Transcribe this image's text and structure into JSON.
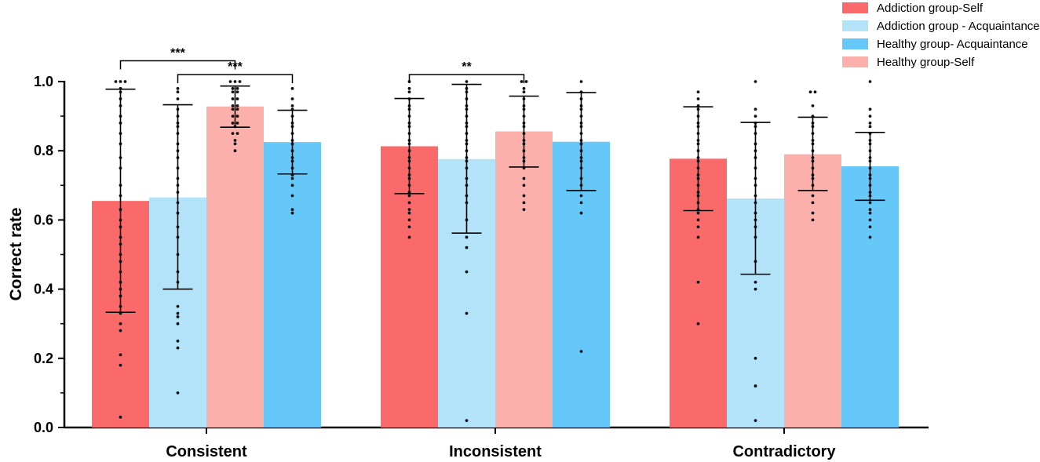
{
  "chart_data": {
    "type": "bar",
    "title": "",
    "xlabel": "",
    "ylabel": "Correct  rate",
    "ylim": [
      0,
      1.0
    ],
    "yticks": [
      "0.0",
      "0.2",
      "0.4",
      "0.6",
      "0.8",
      "1.0"
    ],
    "ytick_values": [
      0,
      0.2,
      0.4,
      0.6,
      0.8,
      1.0
    ],
    "grid": false,
    "legend_position": "top-right",
    "categories": [
      "Consistent",
      "Inconsistent",
      "Contradictory"
    ],
    "series": [
      {
        "name": "Addiction group-Self",
        "color": "#fa6a6a",
        "values": [
          0.655,
          0.813,
          0.777
        ],
        "err_low": [
          0.333,
          0.676,
          0.627
        ],
        "err_high": [
          0.978,
          0.951,
          0.927
        ],
        "points": [
          [
            0.03,
            0.18,
            0.21,
            0.28,
            0.3,
            0.33,
            0.35,
            0.38,
            0.4,
            0.42,
            0.45,
            0.48,
            0.5,
            0.53,
            0.55,
            0.58,
            0.6,
            0.63,
            0.67,
            0.7,
            0.75,
            0.78,
            0.82,
            0.85,
            0.88,
            0.9,
            0.93,
            0.95,
            0.97,
            0.98,
            1.0,
            1.0,
            1.0
          ],
          [
            0.55,
            0.58,
            0.6,
            0.62,
            0.63,
            0.65,
            0.67,
            0.68,
            0.7,
            0.72,
            0.73,
            0.75,
            0.77,
            0.78,
            0.8,
            0.82,
            0.83,
            0.85,
            0.87,
            0.88,
            0.9,
            0.92,
            0.93,
            0.95,
            0.97,
            0.98,
            1.0
          ],
          [
            0.3,
            0.42,
            0.55,
            0.58,
            0.6,
            0.62,
            0.63,
            0.65,
            0.67,
            0.68,
            0.7,
            0.72,
            0.73,
            0.75,
            0.77,
            0.78,
            0.8,
            0.82,
            0.83,
            0.85,
            0.87,
            0.88,
            0.9,
            0.92,
            0.93,
            0.95,
            0.97
          ]
        ]
      },
      {
        "name": "Addiction group - Acquaintance",
        "color": "#b3e3f9",
        "values": [
          0.665,
          0.776,
          0.662
        ],
        "err_low": [
          0.4,
          0.562,
          0.443
        ],
        "err_high": [
          0.933,
          0.992,
          0.882
        ],
        "points": [
          [
            0.1,
            0.23,
            0.25,
            0.3,
            0.32,
            0.33,
            0.35,
            0.42,
            0.45,
            0.5,
            0.55,
            0.58,
            0.62,
            0.65,
            0.68,
            0.7,
            0.72,
            0.75,
            0.78,
            0.8,
            0.82,
            0.85,
            0.87,
            0.88,
            0.9,
            0.92,
            0.95,
            0.97,
            0.98
          ],
          [
            0.02,
            0.33,
            0.45,
            0.52,
            0.55,
            0.6,
            0.65,
            0.67,
            0.7,
            0.72,
            0.75,
            0.77,
            0.78,
            0.8,
            0.82,
            0.83,
            0.85,
            0.87,
            0.88,
            0.9,
            0.92,
            0.93,
            0.95,
            0.97,
            0.98,
            1.0
          ],
          [
            0.02,
            0.12,
            0.2,
            0.4,
            0.42,
            0.48,
            0.55,
            0.58,
            0.6,
            0.62,
            0.65,
            0.67,
            0.7,
            0.72,
            0.75,
            0.78,
            0.8,
            0.82,
            0.85,
            0.87,
            0.88,
            0.9,
            0.92,
            1.0
          ]
        ]
      },
      {
        "name": "Healthy group-Self",
        "color": "#fbb0ac",
        "values": [
          0.928,
          0.856,
          0.79
        ],
        "err_low": [
          0.868,
          0.753,
          0.685
        ],
        "err_high": [
          0.987,
          0.958,
          0.897
        ],
        "points": [
          [
            0.8,
            0.82,
            0.83,
            0.85,
            0.85,
            0.87,
            0.88,
            0.88,
            0.9,
            0.9,
            0.92,
            0.92,
            0.93,
            0.93,
            0.95,
            0.95,
            0.97,
            0.97,
            0.98,
            0.98,
            1.0,
            1.0,
            1.0
          ],
          [
            0.63,
            0.65,
            0.67,
            0.7,
            0.72,
            0.75,
            0.77,
            0.78,
            0.8,
            0.82,
            0.83,
            0.85,
            0.87,
            0.88,
            0.9,
            0.92,
            0.93,
            0.95,
            0.97,
            0.98,
            1.0,
            1.0
          ],
          [
            0.6,
            0.62,
            0.65,
            0.67,
            0.7,
            0.72,
            0.73,
            0.75,
            0.77,
            0.78,
            0.8,
            0.82,
            0.83,
            0.85,
            0.87,
            0.88,
            0.9,
            0.93,
            0.97,
            0.97
          ]
        ]
      },
      {
        "name": "Healthy group- Acquaintance",
        "color": "#65c8f9",
        "values": [
          0.825,
          0.826,
          0.755
        ],
        "err_low": [
          0.733,
          0.685,
          0.657
        ],
        "err_high": [
          0.917,
          0.968,
          0.853
        ],
        "points": [
          [
            0.62,
            0.63,
            0.67,
            0.7,
            0.72,
            0.73,
            0.75,
            0.77,
            0.78,
            0.8,
            0.82,
            0.83,
            0.85,
            0.87,
            0.88,
            0.9,
            0.92,
            0.93,
            0.95,
            0.98
          ],
          [
            0.22,
            0.62,
            0.65,
            0.67,
            0.7,
            0.72,
            0.75,
            0.77,
            0.78,
            0.8,
            0.82,
            0.83,
            0.85,
            0.87,
            0.88,
            0.9,
            0.92,
            0.93,
            0.95,
            0.97,
            1.0
          ],
          [
            0.55,
            0.58,
            0.6,
            0.62,
            0.63,
            0.65,
            0.67,
            0.68,
            0.7,
            0.72,
            0.73,
            0.75,
            0.77,
            0.78,
            0.8,
            0.82,
            0.83,
            0.85,
            0.87,
            0.88,
            0.9,
            0.92,
            1.0
          ]
        ]
      }
    ],
    "legend_order": [
      0,
      1,
      3,
      2
    ],
    "significance": [
      {
        "category": 0,
        "from_series": 0,
        "to_series": 2,
        "label": "***",
        "level": 1.06
      },
      {
        "category": 0,
        "from_series": 1,
        "to_series": 3,
        "label": "***",
        "level": 1.02
      },
      {
        "category": 1,
        "from_series": 0,
        "to_series": 2,
        "label": "**",
        "level": 1.02
      }
    ]
  }
}
